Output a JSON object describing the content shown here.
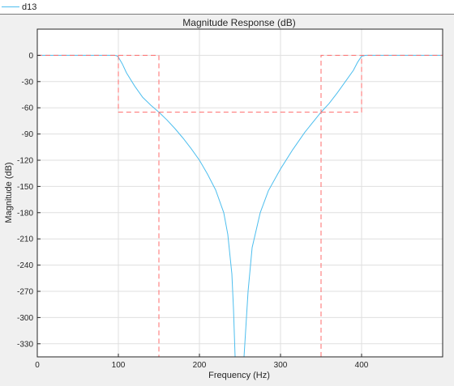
{
  "legend": {
    "label": "d13",
    "color": "#4dbeee"
  },
  "chart_data": {
    "type": "line",
    "title": "Magnitude Response (dB)",
    "xlabel": "Frequency (Hz)",
    "ylabel": "Magnitude (dB)",
    "xlim": [
      0,
      500
    ],
    "ylim": [
      -345,
      30
    ],
    "xticks": [
      0,
      100,
      200,
      300,
      400
    ],
    "yticks": [
      0,
      -30,
      -60,
      -90,
      -120,
      -150,
      -180,
      -210,
      -240,
      -270,
      -300,
      -330
    ],
    "grid": true,
    "series": [
      {
        "name": "d13",
        "color": "#4dbeee",
        "style": "solid",
        "segments": [
          [
            [
              0,
              0
            ],
            [
              95,
              0
            ],
            [
              98,
              -0.5
            ],
            [
              100,
              -2
            ],
            [
              105,
              -10
            ],
            [
              110,
              -20
            ],
            [
              120,
              -35
            ],
            [
              130,
              -48
            ],
            [
              140,
              -57
            ],
            [
              150,
              -65
            ],
            [
              160,
              -74
            ],
            [
              170,
              -84
            ],
            [
              180,
              -95
            ],
            [
              190,
              -107
            ],
            [
              200,
              -120
            ],
            [
              210,
              -136
            ],
            [
              220,
              -154
            ],
            [
              230,
              -180
            ],
            [
              235,
              -205
            ],
            [
              240,
              -250
            ],
            [
              242,
              -290
            ],
            [
              244,
              -345
            ]
          ],
          [
            [
              255,
              -345
            ],
            [
              258,
              -300
            ],
            [
              260,
              -270
            ],
            [
              265,
              -220
            ],
            [
              275,
              -180
            ],
            [
              285,
              -155
            ],
            [
              300,
              -130
            ],
            [
              315,
              -108
            ],
            [
              330,
              -88
            ],
            [
              350,
              -65
            ],
            [
              360,
              -55
            ],
            [
              370,
              -43
            ],
            [
              380,
              -30
            ],
            [
              390,
              -17
            ],
            [
              395,
              -8
            ],
            [
              400,
              -1
            ],
            [
              405,
              0
            ],
            [
              500,
              0
            ]
          ]
        ]
      },
      {
        "name": "",
        "color": "#ff6b6b",
        "style": "dashed",
        "segments": [
          [
            [
              0,
              0
            ],
            [
              150,
              0
            ],
            [
              150,
              -345
            ]
          ],
          [
            [
              100,
              0
            ],
            [
              100,
              -65
            ],
            [
              400,
              -65
            ],
            [
              400,
              0
            ]
          ],
          [
            [
              350,
              -345
            ],
            [
              350,
              0
            ],
            [
              500,
              0
            ]
          ]
        ]
      }
    ]
  }
}
